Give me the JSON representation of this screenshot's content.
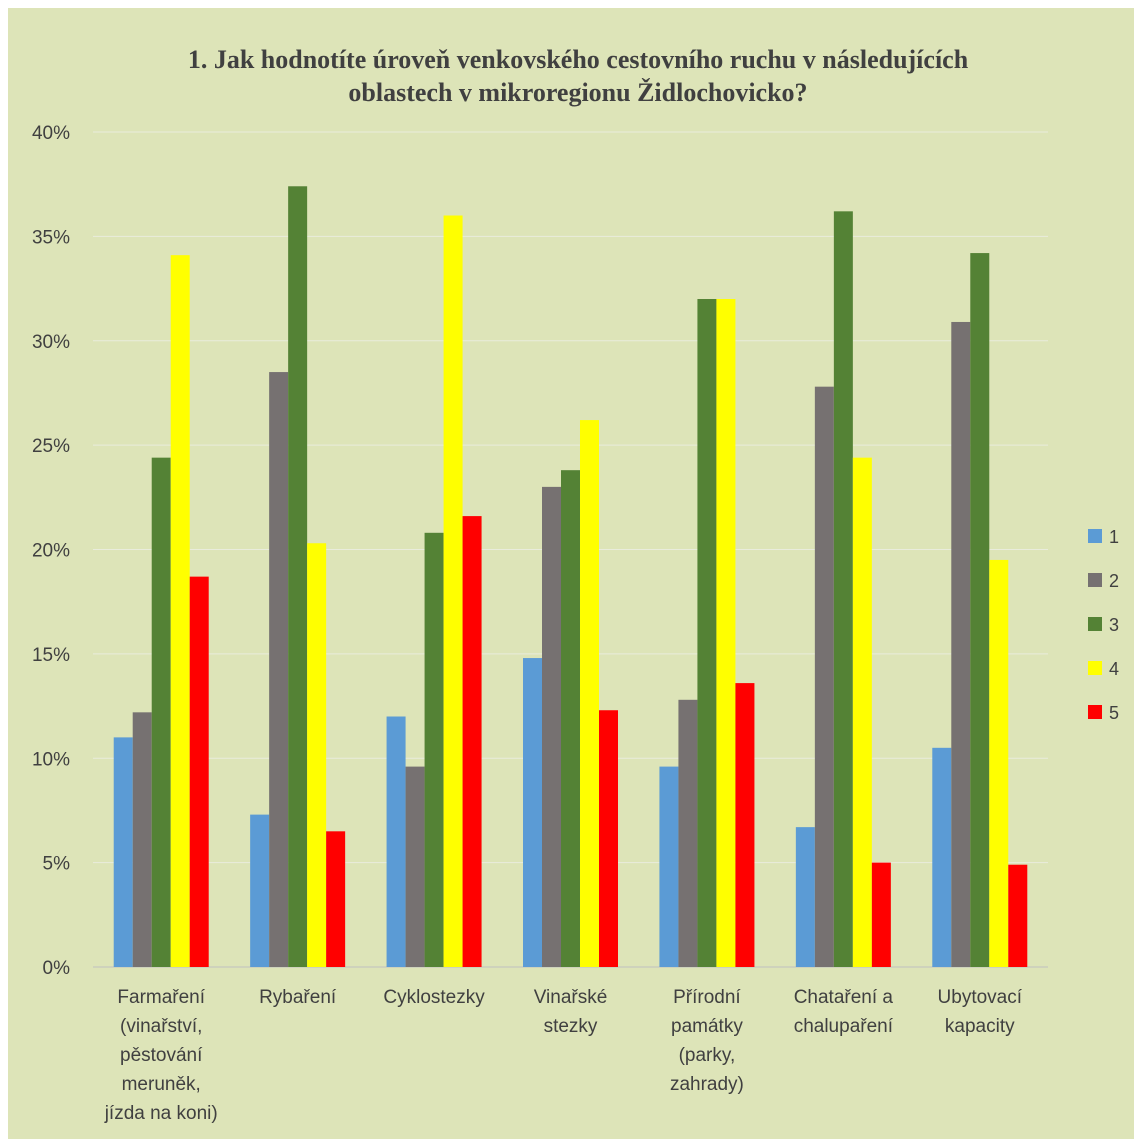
{
  "chart_data": {
    "type": "bar",
    "title": "1. Jak hodnotíte úroveň venkovského cestovního ruchu v následujících oblastech v mikroregionu Židlochovicko?",
    "title_lines": [
      "1. Jak hodnotíte úroveň venkovského cestovního ruchu v následujících",
      "oblastech v mikroregionu Židlochovicko?"
    ],
    "xlabel": "",
    "ylabel": "",
    "ylim": [
      0,
      40
    ],
    "y_ticks": [
      "0%",
      "5%",
      "10%",
      "15%",
      "20%",
      "25%",
      "30%",
      "35%",
      "40%"
    ],
    "grid": true,
    "legend_position": "right",
    "categories": [
      "Farmaření (vinařství, pěstování meruněk, jízda na koni)",
      "Rybaření",
      "Cyklostezky",
      "Vinařské stezky",
      "Přírodní památky (parky, zahrady)",
      "Chataření a chalupaření",
      "Ubytovací kapacity"
    ],
    "category_lines": [
      [
        "Farmaření",
        "(vinařství,",
        "pěstování",
        "meruněk,",
        "jízda na koni)"
      ],
      [
        "Rybaření"
      ],
      [
        "Cyklostezky"
      ],
      [
        "Vinařské",
        "stezky"
      ],
      [
        "Přírodní",
        "památky",
        "(parky,",
        "zahrady)"
      ],
      [
        "Chataření a",
        "chalupaření"
      ],
      [
        "Ubytovací",
        "kapacity"
      ]
    ],
    "series": [
      {
        "name": "1",
        "color": "#5b9bd5",
        "values": [
          11.0,
          7.3,
          12.0,
          14.8,
          9.6,
          6.7,
          10.5
        ]
      },
      {
        "name": "2",
        "color": "#767171",
        "values": [
          12.2,
          28.5,
          9.6,
          23.0,
          12.8,
          27.8,
          30.9
        ]
      },
      {
        "name": "3",
        "color": "#548235",
        "values": [
          24.4,
          37.4,
          20.8,
          23.8,
          32.0,
          36.2,
          34.2
        ]
      },
      {
        "name": "4",
        "color": "#ffff00",
        "values": [
          34.1,
          20.3,
          36.0,
          26.2,
          32.0,
          24.4,
          19.5
        ]
      },
      {
        "name": "5",
        "color": "#ff0000",
        "values": [
          18.7,
          6.5,
          21.6,
          12.3,
          13.6,
          5.0,
          4.9
        ]
      }
    ]
  }
}
